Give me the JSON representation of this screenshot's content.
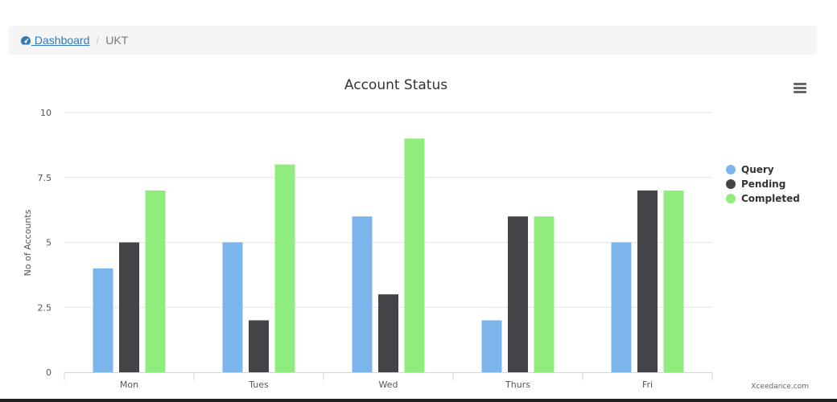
{
  "breadcrumb": {
    "home_label": " Dashboard",
    "home_icon": "dashboard-icon",
    "separator": "/",
    "current": "UKT"
  },
  "chart_data": {
    "type": "bar",
    "title": "Account Status",
    "xlabel": "",
    "ylabel": "No of Accounts",
    "categories": [
      "Mon",
      "Tues",
      "Wed",
      "Thurs",
      "Fri"
    ],
    "ylim": [
      0,
      10
    ],
    "yticks": [
      0,
      2.5,
      5,
      7.5,
      10
    ],
    "ytick_labels": [
      "0",
      "2.5",
      "5",
      "7.5",
      "10"
    ],
    "grid": true,
    "legend_position": "right",
    "series": [
      {
        "name": "Query",
        "color": "#7cb5ec",
        "values": [
          4,
          5,
          6,
          2,
          5
        ]
      },
      {
        "name": "Pending",
        "color": "#434348",
        "values": [
          5,
          2,
          3,
          6,
          7
        ]
      },
      {
        "name": "Completed",
        "color": "#90ed7d",
        "values": [
          7,
          8,
          9,
          6,
          7
        ]
      }
    ],
    "credits": "Xceedance.com",
    "menu_icon": "hamburger-menu-icon"
  }
}
